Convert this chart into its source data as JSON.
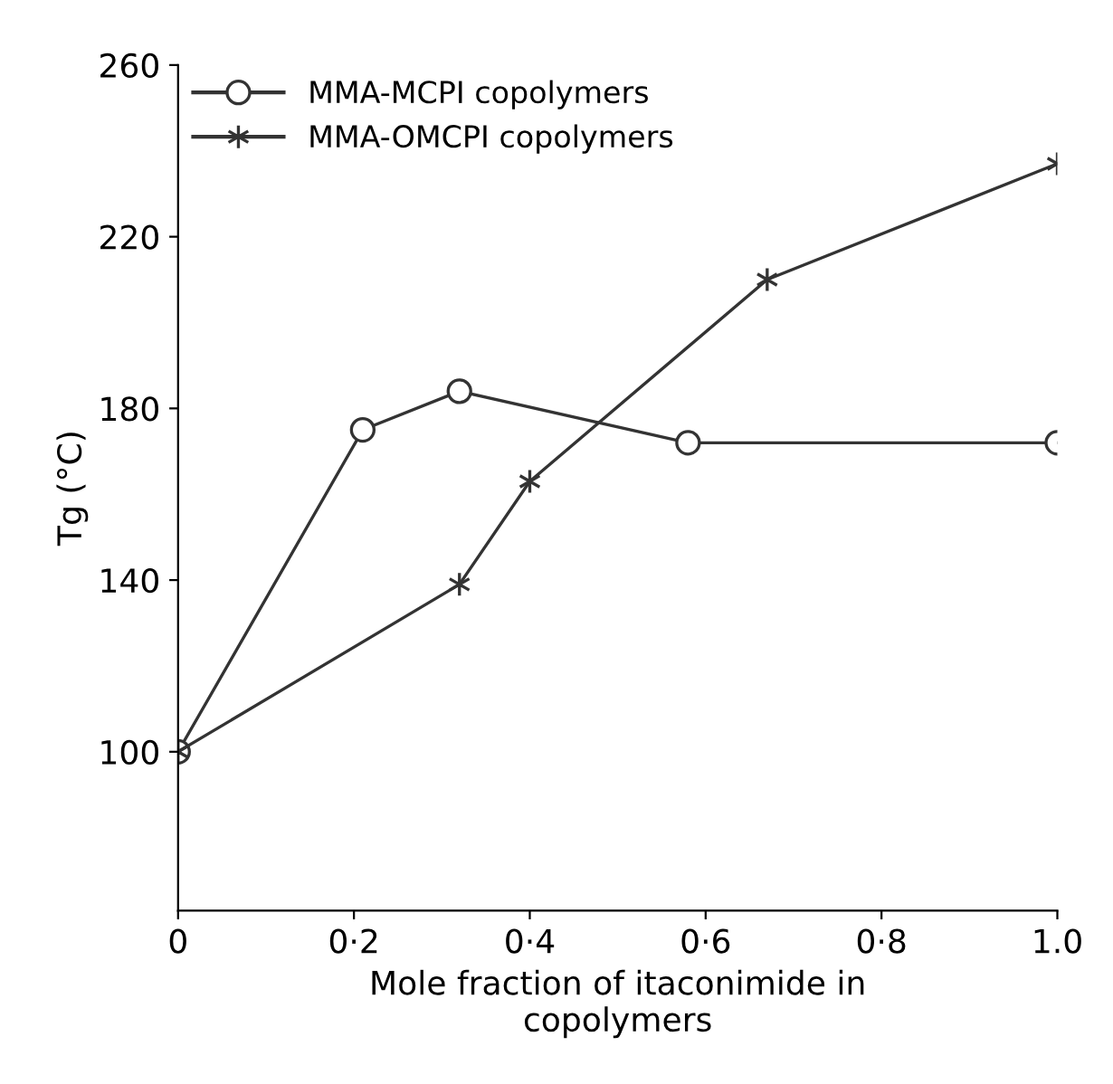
{
  "chart_data": {
    "type": "line",
    "xlabel": "Mole fraction of itaconimide in\ncopolymers",
    "ylabel": "Tg (°C)",
    "xlim": [
      0,
      1.0
    ],
    "ylim": [
      63,
      260
    ],
    "xticks": [
      0,
      {
        "value": 0.2,
        "label": "0·2"
      },
      {
        "value": 0.4,
        "label": "0·4"
      },
      {
        "value": 0.6,
        "label": "0·6"
      },
      {
        "value": 0.8,
        "label": "0·8"
      },
      {
        "value": 1.0,
        "label": "1.0"
      }
    ],
    "yticks": [
      100,
      140,
      180,
      220,
      260
    ],
    "grid": false,
    "legend": "top left",
    "line_style": "solid",
    "series": [
      {
        "name": "MMA-MCPI copolymers",
        "color": "#333333",
        "marker": "circle",
        "x": [
          0,
          0.21,
          0.32,
          0.58,
          1.0
        ],
        "values": [
          100,
          175,
          184,
          172,
          172
        ]
      },
      {
        "name": "MMA-OMCPI copolymers",
        "color": "#333333",
        "marker": "cross",
        "x": [
          0,
          0.32,
          0.4,
          0.67,
          1.0
        ],
        "values": [
          100,
          139,
          163,
          210,
          237
        ]
      }
    ]
  }
}
